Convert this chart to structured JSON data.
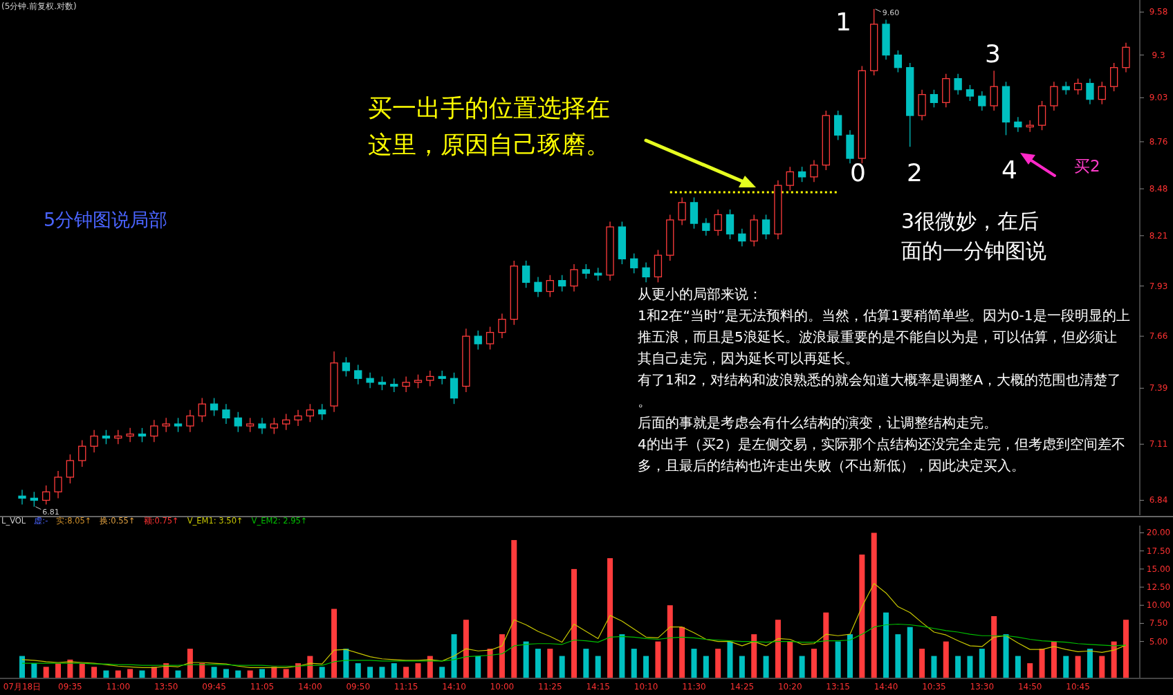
{
  "chart_data": [
    {
      "type": "candlestick",
      "title": "(5分钟.前复权.对数)",
      "log": "y",
      "tick_labels": "y",
      "ylim": [
        6.77,
        9.66
      ],
      "yticks": [
        6.84,
        7.11,
        7.39,
        7.66,
        7.93,
        8.21,
        8.48,
        8.76,
        9.03,
        9.3,
        9.58
      ],
      "categories": [
        null,
        null,
        null,
        null,
        null,
        null,
        null,
        null,
        null,
        null,
        null,
        null,
        null,
        null,
        null,
        null,
        null,
        null,
        null,
        null,
        null,
        null,
        null,
        null,
        null,
        null,
        null,
        null,
        null,
        null,
        null,
        null,
        null,
        null,
        null,
        null,
        null,
        null,
        null,
        null,
        null,
        null,
        null,
        null,
        null,
        null,
        null,
        null,
        null,
        null,
        null,
        null,
        null,
        null,
        null,
        null,
        null,
        null,
        null,
        null,
        null,
        null,
        null,
        null,
        null,
        null,
        null,
        null,
        null,
        null,
        null,
        null,
        null,
        null,
        null,
        null,
        null,
        null,
        null,
        null,
        null,
        null,
        null,
        null,
        null,
        null,
        null,
        null,
        null,
        null,
        null,
        null,
        null
      ],
      "ohlc": [
        [
          6.86,
          6.89,
          6.82,
          6.85
        ],
        [
          6.85,
          6.88,
          6.81,
          6.84
        ],
        [
          6.84,
          6.91,
          6.82,
          6.88
        ],
        [
          6.88,
          6.98,
          6.85,
          6.95
        ],
        [
          6.95,
          7.06,
          6.92,
          7.03
        ],
        [
          7.03,
          7.13,
          7.0,
          7.1
        ],
        [
          7.1,
          7.18,
          7.07,
          7.15
        ],
        [
          7.15,
          7.18,
          7.11,
          7.14
        ],
        [
          7.14,
          7.18,
          7.11,
          7.15
        ],
        [
          7.15,
          7.19,
          7.12,
          7.16
        ],
        [
          7.16,
          7.19,
          7.12,
          7.15
        ],
        [
          7.15,
          7.23,
          7.12,
          7.2
        ],
        [
          7.2,
          7.24,
          7.17,
          7.21
        ],
        [
          7.21,
          7.24,
          7.17,
          7.2
        ],
        [
          7.2,
          7.28,
          7.17,
          7.25
        ],
        [
          7.25,
          7.34,
          7.22,
          7.31
        ],
        [
          7.31,
          7.34,
          7.25,
          7.28
        ],
        [
          7.28,
          7.31,
          7.21,
          7.24
        ],
        [
          7.24,
          7.27,
          7.17,
          7.2
        ],
        [
          7.2,
          7.24,
          7.17,
          7.21
        ],
        [
          7.21,
          7.24,
          7.16,
          7.19
        ],
        [
          7.19,
          7.24,
          7.16,
          7.21
        ],
        [
          7.21,
          7.26,
          7.18,
          7.23
        ],
        [
          7.23,
          7.28,
          7.2,
          7.25
        ],
        [
          7.25,
          7.31,
          7.22,
          7.28
        ],
        [
          7.28,
          7.31,
          7.23,
          7.26
        ],
        [
          7.3,
          7.58,
          7.27,
          7.52
        ],
        [
          7.52,
          7.55,
          7.45,
          7.48
        ],
        [
          7.48,
          7.51,
          7.41,
          7.44
        ],
        [
          7.44,
          7.47,
          7.39,
          7.42
        ],
        [
          7.42,
          7.45,
          7.38,
          7.41
        ],
        [
          7.41,
          7.44,
          7.37,
          7.4
        ],
        [
          7.4,
          7.45,
          7.37,
          7.42
        ],
        [
          7.42,
          7.46,
          7.39,
          7.43
        ],
        [
          7.43,
          7.48,
          7.4,
          7.45
        ],
        [
          7.45,
          7.48,
          7.41,
          7.44
        ],
        [
          7.44,
          7.47,
          7.31,
          7.34
        ],
        [
          7.4,
          7.7,
          7.37,
          7.66
        ],
        [
          7.66,
          7.69,
          7.59,
          7.62
        ],
        [
          7.62,
          7.71,
          7.59,
          7.68
        ],
        [
          7.68,
          7.78,
          7.65,
          7.75
        ],
        [
          7.75,
          8.07,
          7.72,
          8.04
        ],
        [
          8.04,
          8.07,
          7.92,
          7.95
        ],
        [
          7.95,
          7.98,
          7.87,
          7.9
        ],
        [
          7.9,
          7.99,
          7.87,
          7.96
        ],
        [
          7.96,
          7.99,
          7.9,
          7.93
        ],
        [
          7.93,
          8.05,
          7.9,
          8.02
        ],
        [
          8.02,
          8.05,
          7.97,
          8.0
        ],
        [
          8.0,
          8.03,
          7.96,
          7.99
        ],
        [
          7.99,
          8.29,
          7.96,
          8.26
        ],
        [
          8.26,
          8.29,
          8.05,
          8.08
        ],
        [
          8.08,
          8.11,
          8.0,
          8.03
        ],
        [
          8.03,
          8.06,
          7.95,
          7.98
        ],
        [
          7.98,
          8.13,
          7.95,
          8.1
        ],
        [
          8.1,
          8.33,
          8.07,
          8.3
        ],
        [
          8.3,
          8.43,
          8.27,
          8.4
        ],
        [
          8.4,
          8.43,
          8.25,
          8.28
        ],
        [
          8.28,
          8.31,
          8.21,
          8.24
        ],
        [
          8.24,
          8.36,
          8.21,
          8.33
        ],
        [
          8.33,
          8.36,
          8.19,
          8.22
        ],
        [
          8.22,
          8.25,
          8.15,
          8.18
        ],
        [
          8.18,
          8.33,
          8.15,
          8.3
        ],
        [
          8.3,
          8.33,
          8.19,
          8.22
        ],
        [
          8.22,
          8.53,
          8.19,
          8.5
        ],
        [
          8.5,
          8.61,
          8.47,
          8.58
        ],
        [
          8.58,
          8.61,
          8.52,
          8.55
        ],
        [
          8.55,
          8.65,
          8.52,
          8.62
        ],
        [
          8.62,
          8.95,
          8.59,
          8.92
        ],
        [
          8.92,
          8.95,
          8.77,
          8.8
        ],
        [
          8.8,
          8.83,
          8.63,
          8.66
        ],
        [
          8.66,
          9.23,
          8.63,
          9.2
        ],
        [
          9.2,
          9.6,
          9.17,
          9.5
        ],
        [
          9.5,
          9.53,
          9.27,
          9.3
        ],
        [
          9.3,
          9.33,
          9.19,
          9.22
        ],
        [
          9.22,
          9.25,
          8.73,
          8.92
        ],
        [
          8.92,
          9.08,
          8.89,
          9.05
        ],
        [
          9.05,
          9.08,
          8.97,
          9.0
        ],
        [
          9.0,
          9.18,
          8.97,
          9.15
        ],
        [
          9.15,
          9.18,
          9.05,
          9.08
        ],
        [
          9.08,
          9.11,
          9.01,
          9.04
        ],
        [
          9.04,
          9.07,
          8.95,
          8.98
        ],
        [
          8.98,
          9.2,
          8.95,
          9.1
        ],
        [
          9.1,
          9.13,
          8.8,
          8.88
        ],
        [
          8.88,
          8.91,
          8.82,
          8.85
        ],
        [
          8.85,
          8.89,
          8.82,
          8.86
        ],
        [
          8.86,
          9.01,
          8.83,
          8.98
        ],
        [
          8.98,
          9.13,
          8.95,
          9.1
        ],
        [
          9.1,
          9.13,
          9.05,
          9.08
        ],
        [
          9.08,
          9.15,
          9.05,
          9.12
        ],
        [
          9.12,
          9.15,
          8.99,
          9.02
        ],
        [
          9.02,
          9.13,
          8.99,
          9.1
        ],
        [
          9.1,
          9.25,
          9.07,
          9.22
        ],
        [
          9.22,
          9.38,
          9.19,
          9.35
        ]
      ],
      "ref_lines": [
        {
          "axis": "y",
          "value": 8.46,
          "color": "#ffff00",
          "line_style": "dotted"
        }
      ],
      "annotations": [
        "5分钟图说局部",
        "买一出手的位置选择在这里，原因自己琢磨。",
        "1",
        "0",
        "2",
        "3",
        "4",
        "买2",
        "3很微妙，在后面的一分钟图说",
        "从更小的局部来说：",
        "1和2在“当时”是无法预料的。当然，估算1要稍简单些。因为0-1是一段明显的上推五浪，而且是5浪延长。波浪最重要的是不能自以为是，可以估算，但必须让其自己走完，因为延长可以再延长。",
        "有了1和2，对结构和波浪熟悉的就会知道大概率是调整A，大概的范围也清楚了。",
        "后面的事就是考虑会有什么结构的演变，让调整结构走完。",
        "4的出手（买2）是左侧交易，实际那个点结构还没完全走完，但考虑到空间差不多，且最后的结构也许走出失败（不出新低），因此决定买入。",
        "9.60",
        "6.81"
      ]
    },
    {
      "type": "bar",
      "legend": "top left",
      "ylim": [
        0,
        21
      ],
      "yticks": [
        {
          "value": 5,
          "label": "5.00"
        },
        {
          "value": 7.5,
          "label": "7.50"
        },
        {
          "value": 10,
          "label": "10.00"
        },
        {
          "value": 12.5,
          "label": "12.50"
        },
        {
          "value": 15,
          "label": "15.00"
        },
        {
          "value": 17.5,
          "label": "17.50"
        },
        {
          "value": 20,
          "label": "20.00"
        }
      ],
      "categories": [
        "07月18日",
        null,
        null,
        null,
        "09:35",
        null,
        null,
        null,
        "11:00",
        null,
        null,
        null,
        "13:50",
        null,
        null,
        null,
        "09:45",
        null,
        null,
        null,
        "11:05",
        null,
        null,
        null,
        "14:00",
        null,
        null,
        null,
        "09:50",
        null,
        null,
        null,
        "11:15",
        null,
        null,
        null,
        "14:10",
        null,
        null,
        null,
        "10:00",
        null,
        null,
        null,
        "11:25",
        null,
        null,
        null,
        "14:15",
        null,
        null,
        null,
        "10:10",
        null,
        null,
        null,
        "11:30",
        null,
        null,
        null,
        "14:25",
        null,
        null,
        null,
        "10:20",
        null,
        null,
        null,
        "13:15",
        null,
        null,
        null,
        "14:40",
        null,
        null,
        null,
        "10:35",
        null,
        null,
        null,
        "13:30",
        null,
        null,
        null,
        "14:50",
        null,
        null,
        null,
        "10:45",
        null,
        null,
        null,
        null
      ],
      "annotations": [
        "L_VOL",
        "虚:-",
        "实:8.05↑",
        "换:0.55↑",
        "额:0.75↑"
      ],
      "series": [
        {
          "type": "bar",
          "values": [
            3,
            2,
            1.5,
            2,
            2.5,
            2,
            1.5,
            1,
            1,
            1.2,
            1,
            1.5,
            2,
            1,
            4,
            2,
            1.5,
            1.2,
            1,
            1,
            1.2,
            1.5,
            1.2,
            2,
            3,
            1.5,
            9.5,
            4,
            2,
            1.5,
            1.5,
            2,
            1.5,
            2,
            3,
            1.5,
            6,
            8,
            3,
            4,
            6,
            19,
            5,
            4,
            4,
            3,
            15,
            4,
            3,
            16.5,
            6,
            4,
            3,
            5,
            10,
            7,
            4,
            3,
            4,
            5,
            3,
            6,
            3,
            8,
            5,
            3,
            4,
            9,
            5,
            6,
            17,
            20,
            9,
            6,
            7,
            4,
            3,
            5,
            3,
            3,
            4,
            8.5,
            6,
            3,
            2,
            4,
            5,
            3,
            3,
            4,
            3,
            5,
            8
          ],
          "colors": [
            "#00c0c0",
            "#00c0c0",
            "#ff3c3c",
            "#ff3c3c",
            "#ff3c3c",
            "#ff3c3c",
            "#ff3c3c",
            "#00c0c0",
            "#ff3c3c",
            "#ff3c3c",
            "#00c0c0",
            "#ff3c3c",
            "#ff3c3c",
            "#00c0c0",
            "#ff3c3c",
            "#ff3c3c",
            "#00c0c0",
            "#00c0c0",
            "#00c0c0",
            "#ff3c3c",
            "#00c0c0",
            "#ff3c3c",
            "#ff3c3c",
            "#ff3c3c",
            "#ff3c3c",
            "#00c0c0",
            "#ff3c3c",
            "#00c0c0",
            "#00c0c0",
            "#00c0c0",
            "#00c0c0",
            "#00c0c0",
            "#ff3c3c",
            "#ff3c3c",
            "#ff3c3c",
            "#00c0c0",
            "#00c0c0",
            "#ff3c3c",
            "#00c0c0",
            "#ff3c3c",
            "#ff3c3c",
            "#ff3c3c",
            "#00c0c0",
            "#00c0c0",
            "#ff3c3c",
            "#00c0c0",
            "#ff3c3c",
            "#00c0c0",
            "#00c0c0",
            "#ff3c3c",
            "#00c0c0",
            "#00c0c0",
            "#00c0c0",
            "#ff3c3c",
            "#ff3c3c",
            "#ff3c3c",
            "#00c0c0",
            "#00c0c0",
            "#ff3c3c",
            "#00c0c0",
            "#00c0c0",
            "#ff3c3c",
            "#00c0c0",
            "#ff3c3c",
            "#ff3c3c",
            "#00c0c0",
            "#ff3c3c",
            "#ff3c3c",
            "#00c0c0",
            "#00c0c0",
            "#ff3c3c",
            "#ff3c3c",
            "#00c0c0",
            "#00c0c0",
            "#00c0c0",
            "#ff3c3c",
            "#00c0c0",
            "#ff3c3c",
            "#00c0c0",
            "#00c0c0",
            "#00c0c0",
            "#ff3c3c",
            "#00c0c0",
            "#00c0c0",
            "#ff3c3c",
            "#ff3c3c",
            "#ff3c3c",
            "#00c0c0",
            "#ff3c3c",
            "#00c0c0",
            "#ff3c3c",
            "#ff3c3c",
            "#ff3c3c"
          ]
        },
        {
          "type": "line",
          "name": "V_EM1: 3.50↑",
          "color": "#c8c800",
          "values": [
            2.5,
            2.4,
            2.2,
            2.1,
            2.2,
            2.1,
            2.0,
            1.8,
            1.6,
            1.5,
            1.4,
            1.4,
            1.6,
            1.5,
            2.1,
            2.1,
            2.0,
            1.9,
            1.6,
            1.4,
            1.4,
            1.4,
            1.4,
            1.6,
            2.0,
            1.9,
            3.8,
            3.9,
            3.4,
            2.9,
            2.6,
            2.5,
            2.4,
            2.4,
            2.5,
            2.3,
            3.0,
            4.0,
            3.7,
            3.8,
            4.4,
            8.0,
            7.3,
            6.4,
            5.7,
            4.9,
            7.4,
            6.4,
            5.4,
            8.6,
            7.8,
            6.7,
            5.6,
            5.5,
            7.0,
            7.0,
            6.2,
            5.3,
            5.0,
            5.0,
            4.4,
            5.0,
            4.4,
            5.4,
            5.3,
            4.6,
            4.7,
            6.0,
            5.8,
            6.0,
            9.8,
            13.0,
            11.7,
            9.8,
            9.0,
            7.6,
            6.3,
            5.9,
            5.1,
            4.4,
            4.3,
            5.6,
            5.8,
            4.8,
            3.9,
            3.9,
            4.3,
            3.9,
            3.6,
            3.7,
            3.5,
            3.8,
            4.5
          ]
        },
        {
          "type": "line",
          "name": "V_EM2: 2.95↑",
          "color": "#00c000",
          "values": [
            2.0,
            2.0,
            2.0,
            2.0,
            2.0,
            2.0,
            1.9,
            1.9,
            1.8,
            1.8,
            1.7,
            1.7,
            1.7,
            1.7,
            1.8,
            1.8,
            1.8,
            1.8,
            1.7,
            1.7,
            1.7,
            1.6,
            1.6,
            1.6,
            1.7,
            1.7,
            2.2,
            2.4,
            2.4,
            2.4,
            2.3,
            2.3,
            2.3,
            2.3,
            2.3,
            2.3,
            2.5,
            2.9,
            3.0,
            3.1,
            3.3,
            4.4,
            4.6,
            4.7,
            4.7,
            4.6,
            5.2,
            5.1,
            4.9,
            5.6,
            5.7,
            5.6,
            5.4,
            5.3,
            5.5,
            5.6,
            5.5,
            5.3,
            5.2,
            5.1,
            5.0,
            5.0,
            4.9,
            5.0,
            5.0,
            4.9,
            4.9,
            5.1,
            5.1,
            5.2,
            6.0,
            7.0,
            7.3,
            7.4,
            7.3,
            7.1,
            6.8,
            6.5,
            6.3,
            6.0,
            5.8,
            5.8,
            5.8,
            5.6,
            5.3,
            5.1,
            5.0,
            4.9,
            4.7,
            4.6,
            4.5,
            4.4,
            4.5
          ]
        }
      ]
    }
  ]
}
